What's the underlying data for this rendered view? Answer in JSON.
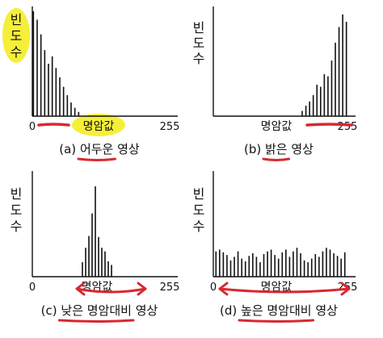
{
  "axis": {
    "ylabel": "빈도수",
    "xlabel": "명암값",
    "x_min": "0",
    "x_max": "255"
  },
  "colors": {
    "highlight": "#f5ef3a",
    "underline": "#d9282f",
    "bars": "#111111",
    "axis": "#111111"
  },
  "panels": [
    {
      "id": "a",
      "prefix": "(a) ",
      "caption_segments": [
        {
          "text": "어두운",
          "underline": true
        },
        {
          "text": " 영상",
          "underline": false
        }
      ],
      "show_min": true,
      "show_max": true,
      "show_xlabel": true,
      "ylabel_highlight": true,
      "xlabel_highlight": true,
      "range_underline": true,
      "arrow_range": false,
      "histogram": {
        "x": [
          2,
          9,
          16,
          23,
          30,
          37,
          44,
          51,
          58,
          65,
          72,
          79,
          86
        ],
        "values": [
          100,
          92,
          78,
          63,
          50,
          57,
          46,
          37,
          28,
          20,
          13,
          8,
          4
        ]
      }
    },
    {
      "id": "b",
      "prefix": "(b) ",
      "caption_segments": [
        {
          "text": "밝은",
          "underline": true
        },
        {
          "text": " 영상",
          "underline": false
        }
      ],
      "show_min": false,
      "show_max": true,
      "show_xlabel": true,
      "ylabel_highlight": false,
      "xlabel_highlight": false,
      "range_underline": true,
      "arrow_range": false,
      "histogram": {
        "x": [
          169,
          176,
          183,
          190,
          197,
          204,
          211,
          218,
          225,
          232,
          239,
          246,
          253
        ],
        "values": [
          5,
          10,
          14,
          20,
          30,
          28,
          40,
          38,
          53,
          70,
          85,
          97,
          90
        ]
      }
    },
    {
      "id": "c",
      "prefix": "(c) ",
      "caption_segments": [
        {
          "text": "낮은 명암대비",
          "underline": true
        },
        {
          "text": " 영상",
          "underline": false
        }
      ],
      "show_min": true,
      "show_max": true,
      "show_xlabel": true,
      "ylabel_highlight": false,
      "xlabel_highlight": false,
      "range_underline": false,
      "arrow_range": true,
      "histogram": {
        "x": [
          93,
          99,
          105,
          111,
          117,
          123,
          129,
          135,
          141,
          147
        ],
        "values": [
          16,
          32,
          45,
          70,
          100,
          44,
          32,
          28,
          17,
          13
        ]
      }
    },
    {
      "id": "d",
      "prefix": "(d) ",
      "caption_segments": [
        {
          "text": "높은 명암대비",
          "underline": true
        },
        {
          "text": " 영상",
          "underline": false
        }
      ],
      "show_min": true,
      "show_max": true,
      "show_xlabel": true,
      "ylabel_highlight": false,
      "xlabel_highlight": false,
      "range_underline": false,
      "arrow_range": true,
      "histogram": {
        "x": [
          5,
          12,
          19,
          26,
          33,
          40,
          47,
          54,
          61,
          68,
          75,
          82,
          89,
          96,
          103,
          110,
          117,
          124,
          131,
          138,
          145,
          152,
          159,
          166,
          173,
          180,
          187,
          194,
          201,
          208,
          215,
          222,
          229,
          236,
          243,
          250
        ],
        "values": [
          28,
          30,
          27,
          24,
          18,
          22,
          28,
          20,
          17,
          23,
          26,
          22,
          16,
          25,
          28,
          30,
          24,
          20,
          27,
          30,
          22,
          28,
          32,
          26,
          18,
          16,
          20,
          25,
          22,
          28,
          32,
          30,
          26,
          23,
          20,
          27
        ]
      }
    }
  ]
}
